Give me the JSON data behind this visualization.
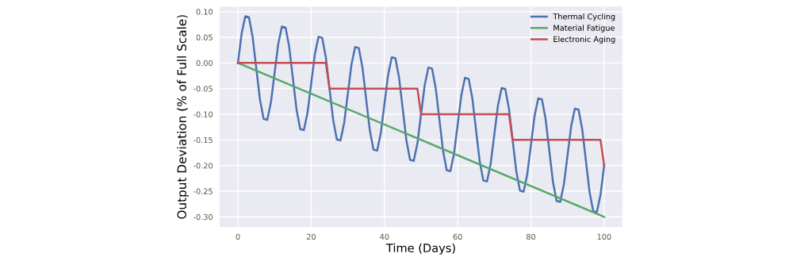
{
  "chart_data": {
    "type": "line",
    "xlabel": "Time (Days)",
    "ylabel": "Output Deviation (% of Full Scale)",
    "xlim": [
      -5,
      105
    ],
    "ylim": [
      -0.32,
      0.11
    ],
    "xticks": [
      0,
      20,
      40,
      60,
      80,
      100
    ],
    "yticks": [
      {
        "value": 0.1,
        "label": "0.10"
      },
      {
        "value": 0.05,
        "label": "0.05"
      },
      {
        "value": 0,
        "label": "0.00"
      },
      {
        "value": -0.05,
        "label": "-0.05"
      },
      {
        "value": -0.1,
        "label": "-0.10"
      },
      {
        "value": -0.15,
        "label": "-0.15"
      },
      {
        "value": -0.2,
        "label": "-0.20"
      },
      {
        "value": -0.25,
        "label": "-0.25"
      },
      {
        "value": -0.3,
        "label": "-0.30"
      }
    ],
    "grid": true,
    "legend": "top right",
    "marker": "none",
    "line_style": "solid",
    "series": [
      {
        "name": "Thermal Cycling",
        "color": "#4c72b0",
        "x": [
          0,
          1,
          2,
          3,
          4,
          5,
          6,
          7,
          8,
          9,
          10,
          11,
          12,
          13,
          14,
          15,
          16,
          17,
          18,
          19,
          20,
          21,
          22,
          23,
          24,
          25,
          26,
          27,
          28,
          29,
          30,
          31,
          32,
          33,
          34,
          35,
          36,
          37,
          38,
          39,
          40,
          41,
          42,
          43,
          44,
          45,
          46,
          47,
          48,
          49,
          50,
          51,
          52,
          53,
          54,
          55,
          56,
          57,
          58,
          59,
          60,
          61,
          62,
          63,
          64,
          65,
          66,
          67,
          68,
          69,
          70,
          71,
          72,
          73,
          74,
          75,
          76,
          77,
          78,
          79,
          80,
          81,
          82,
          83,
          84,
          85,
          86,
          87,
          88,
          89,
          90,
          91,
          92,
          93,
          94,
          95,
          96,
          97,
          98,
          99,
          100
        ],
        "values": [
          0,
          0.057,
          0.091,
          0.089,
          0.051,
          -0.01,
          -0.071,
          -0.109,
          -0.111,
          -0.077,
          -0.02,
          0.037,
          0.071,
          0.069,
          0.031,
          -0.03,
          -0.091,
          -0.129,
          -0.131,
          -0.097,
          -0.04,
          0.017,
          0.051,
          0.049,
          0.011,
          -0.05,
          -0.111,
          -0.149,
          -0.151,
          -0.117,
          -0.06,
          -0.003,
          0.031,
          0.029,
          -0.009,
          -0.07,
          -0.131,
          -0.169,
          -0.171,
          -0.137,
          -0.08,
          -0.023,
          0.011,
          0.009,
          -0.029,
          -0.09,
          -0.151,
          -0.189,
          -0.191,
          -0.157,
          -0.1,
          -0.043,
          -0.009,
          -0.011,
          -0.049,
          -0.11,
          -0.171,
          -0.209,
          -0.211,
          -0.177,
          -0.12,
          -0.063,
          -0.029,
          -0.031,
          -0.069,
          -0.13,
          -0.191,
          -0.229,
          -0.231,
          -0.197,
          -0.14,
          -0.083,
          -0.049,
          -0.051,
          -0.089,
          -0.15,
          -0.211,
          -0.249,
          -0.251,
          -0.217,
          -0.16,
          -0.103,
          -0.069,
          -0.071,
          -0.109,
          -0.17,
          -0.231,
          -0.269,
          -0.271,
          -0.237,
          -0.18,
          -0.123,
          -0.089,
          -0.091,
          -0.129,
          -0.19,
          -0.251,
          -0.289,
          -0.291,
          -0.257,
          -0.2
        ]
      },
      {
        "name": "Material Fatigue",
        "color": "#55a868",
        "x": [
          0,
          100
        ],
        "values": [
          0,
          -0.3
        ]
      },
      {
        "name": "Electronic Aging",
        "color": "#c44e52",
        "x": [
          0,
          24,
          25,
          49,
          50,
          74,
          75,
          99,
          100
        ],
        "values": [
          0,
          0,
          -0.05,
          -0.05,
          -0.1,
          -0.1,
          -0.15,
          -0.15,
          -0.2
        ]
      }
    ]
  }
}
